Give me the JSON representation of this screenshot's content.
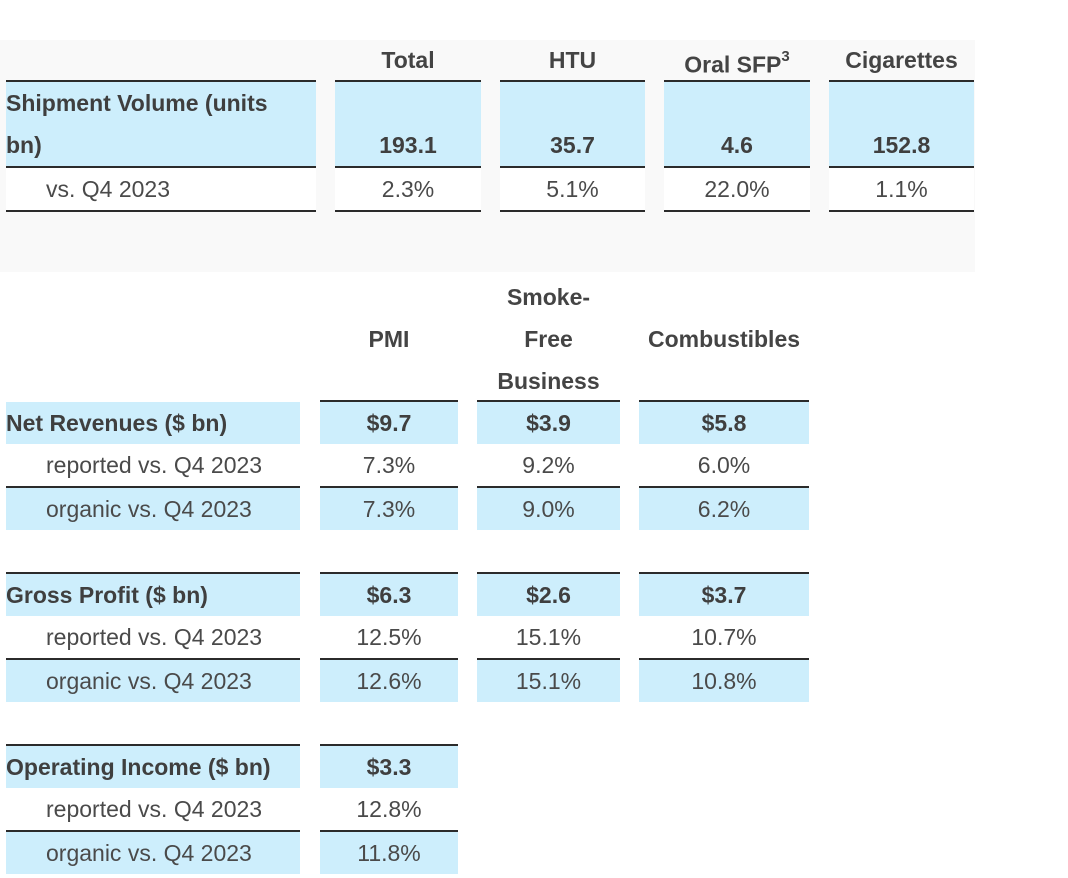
{
  "shipment_table": {
    "headers": {
      "total": "Total",
      "htu": "HTU",
      "oral_sfp": "Oral SFP",
      "oral_sfp_footnote": "3",
      "cigarettes": "Cigarettes"
    },
    "row_volume": {
      "label_line1": "Shipment Volume (units",
      "label_line2": "bn)",
      "values": [
        "193.1",
        "35.7",
        "4.6",
        "152.8"
      ]
    },
    "row_change": {
      "label": "vs. Q4 2023",
      "values": [
        "2.3%",
        "5.1%",
        "22.0%",
        "1.1%"
      ]
    }
  },
  "financial_table": {
    "headers": {
      "pmi": "PMI",
      "smoke_free_line1": "Smoke-",
      "smoke_free_line2": "Free",
      "smoke_free_line3": "Business",
      "combustibles": "Combustibles"
    },
    "net_revenues": {
      "label": "Net Revenues ($ bn)",
      "values": [
        "$9.7",
        "$3.9",
        "$5.8"
      ],
      "reported_label": "reported vs. Q4 2023",
      "reported": [
        "7.3%",
        "9.2%",
        "6.0%"
      ],
      "organic_label": "organic vs. Q4 2023",
      "organic": [
        "7.3%",
        "9.0%",
        "6.2%"
      ]
    },
    "gross_profit": {
      "label": "Gross Profit ($ bn)",
      "values": [
        "$6.3",
        "$2.6",
        "$3.7"
      ],
      "reported_label": "reported vs. Q4 2023",
      "reported": [
        "12.5%",
        "15.1%",
        "10.7%"
      ],
      "organic_label": "organic vs. Q4 2023",
      "organic": [
        "12.6%",
        "15.1%",
        "10.8%"
      ]
    },
    "operating_income": {
      "label": "Operating Income ($ bn)",
      "values": [
        "$3.3"
      ],
      "reported_label": "reported vs. Q4 2023",
      "reported": [
        "12.8%"
      ],
      "organic_label": "organic vs. Q4 2023",
      "organic": [
        "11.8%"
      ]
    }
  }
}
